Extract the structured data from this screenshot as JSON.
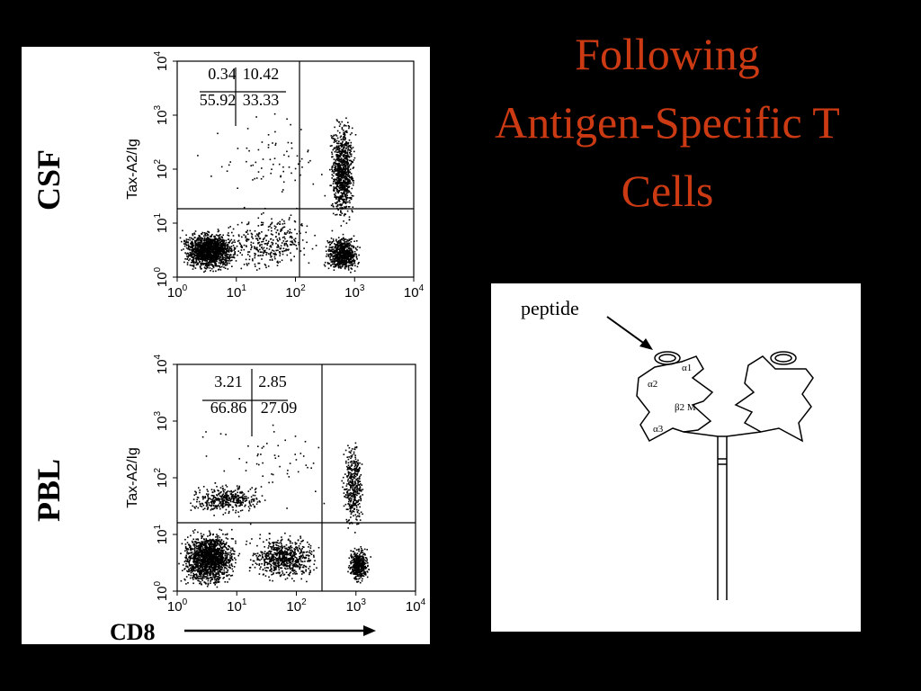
{
  "title_lines": [
    "Following",
    "Antigen-Specific T",
    "Cells"
  ],
  "plots": [
    {
      "sample": "CSF",
      "y_label": "Tax-A2/Ig",
      "quadrants": [
        "0.34",
        "10.42",
        "55.92",
        "33.33"
      ]
    },
    {
      "sample": "PBL",
      "y_label": "Tax-A2/Ig",
      "quadrants": [
        "3.21",
        "2.85",
        "66.86",
        "27.09"
      ]
    }
  ],
  "axis_ticks": [
    {
      "base": "10",
      "exp": "0"
    },
    {
      "base": "10",
      "exp": "1"
    },
    {
      "base": "10",
      "exp": "2"
    },
    {
      "base": "10",
      "exp": "3"
    },
    {
      "base": "10",
      "exp": "4"
    }
  ],
  "x_label": "CD8",
  "diagram": {
    "peptide": "peptide",
    "labels": [
      "α1",
      "α2",
      "β2 M",
      "α3"
    ]
  }
}
